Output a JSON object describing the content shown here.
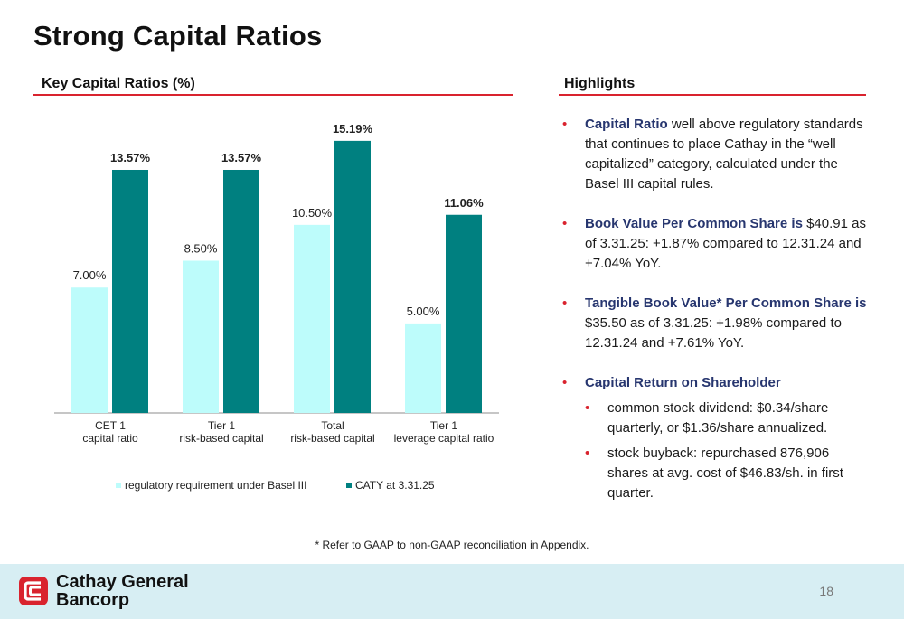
{
  "title": "Strong Capital Ratios",
  "left_section": {
    "heading": "Key Capital Ratios (%)"
  },
  "right_section": {
    "heading": "Highlights"
  },
  "colors": {
    "accent_red": "#d9232e",
    "navy": "#27366f",
    "regulatory": "#bdfcfb",
    "caty": "#008080",
    "footer_bg": "#d7eef3"
  },
  "chart_data": {
    "type": "bar",
    "categories": [
      [
        "CET 1",
        "capital ratio"
      ],
      [
        "Tier 1",
        "risk-based capital"
      ],
      [
        "Total",
        "risk-based capital"
      ],
      [
        "Tier 1",
        "leverage capital ratio"
      ]
    ],
    "series": [
      {
        "name": "regulatory requirement under Basel III",
        "values": [
          7.0,
          8.5,
          10.5,
          5.0
        ],
        "labels": [
          "7.00%",
          "8.50%",
          "10.50%",
          "5.00%"
        ],
        "color": "#bdfcfb"
      },
      {
        "name": "CATY at 3.31.25",
        "values": [
          13.57,
          13.57,
          15.19,
          11.06
        ],
        "labels": [
          "13.57%",
          "13.57%",
          "15.19%",
          "11.06%"
        ],
        "color": "#008080"
      }
    ],
    "ylim": [
      0,
      17
    ],
    "grid": false,
    "legend_position": "bottom"
  },
  "highlights": [
    {
      "title": "Capital Ratio",
      "text": " well above regulatory standards that continues to place Cathay in the “well capitalized” category, calculated under the Basel III capital rules."
    },
    {
      "title": "Book Value Per Common Share is",
      "text": " $40.91 as of 3.31.25: +1.87% compared to 12.31.24 and +7.04% YoY."
    },
    {
      "title": "Tangible Book Value* Per Common Share is",
      "text": " $35.50 as of 3.31.25: +1.98% compared to 12.31.24 and +7.61% YoY."
    },
    {
      "title": "Capital Return on Shareholder",
      "text": "",
      "subs": [
        "common stock dividend: $0.34/share quarterly, or $1.36/share annualized.",
        "stock buyback: repurchased 876,906 shares at avg. cost of $46.83/sh. in first quarter."
      ]
    }
  ],
  "footnote": "* Refer to GAAP to non-GAAP reconciliation in Appendix.",
  "footer": {
    "company_line1": "Cathay General",
    "company_line2": "Bancorp",
    "page_number": "18",
    "logo_icon": "cathay-logo-icon"
  }
}
